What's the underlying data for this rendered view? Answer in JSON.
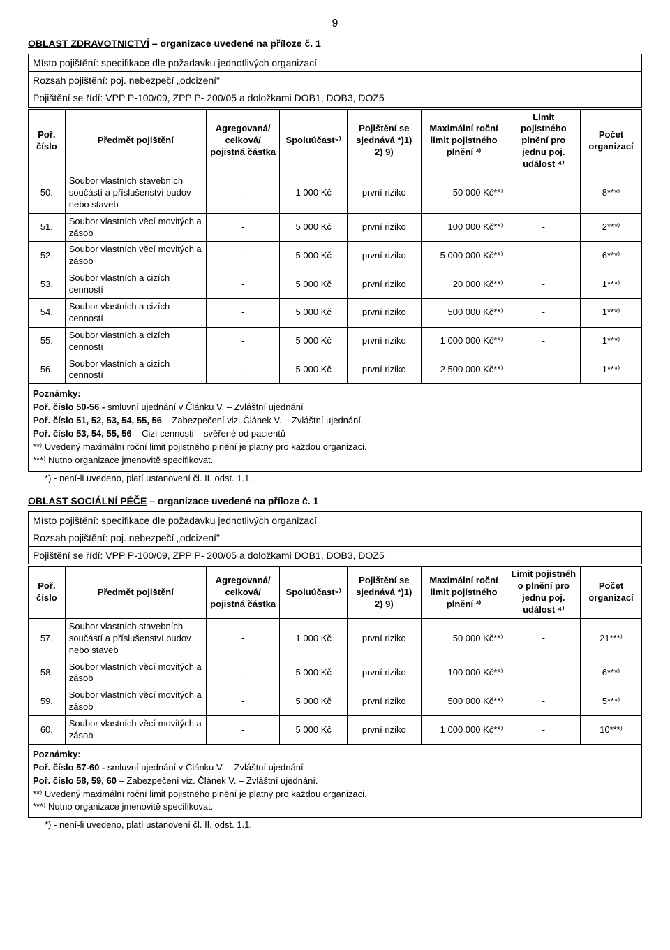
{
  "page_number": "9",
  "section1": {
    "title_pre": "OBLAST ZDRAVOTNICTVÍ",
    "title_post": " – organizace uvedené na příloze č. 1",
    "misto": "Místo pojištění: specifikace dle požadavku jednotlivých organizací",
    "rozsah": "Rozsah pojištění: poj. nebezpečí „odcizení\"",
    "ridi": "Pojištění se řídí: VPP P-100/09, ZPP P- 200/05 a doložkami DOB1, DOB3, DOZ5",
    "head": {
      "c1": "Poř. číslo",
      "c2": "Předmět pojištění",
      "c3": "Agregovaná/ celková/ pojistná částka",
      "c4": "Spoluúčast⁵⁾",
      "c5": "Pojištění se sjednává *)1) 2) 9)",
      "c6": "Maximální roční limit pojistného plnění ³⁾",
      "c7": "Limit pojistného plnění pro jednu poj. událost ⁴⁾",
      "c8": "Počet organizací"
    },
    "rows": [
      {
        "n": "50.",
        "p": "Soubor vlastních stavebních součástí a příslušenství budov nebo staveb",
        "a": "-",
        "s": "1 000 Kč",
        "f": "první riziko",
        "m": "50 000 Kč**⁾",
        "l": "-",
        "o": "8***⁾"
      },
      {
        "n": "51.",
        "p": "Soubor vlastních věcí movitých a zásob",
        "a": "-",
        "s": "5 000 Kč",
        "f": "první riziko",
        "m": "100 000 Kč**⁾",
        "l": "-",
        "o": "2***⁾"
      },
      {
        "n": "52.",
        "p": "Soubor vlastních věcí movitých a zásob",
        "a": "-",
        "s": "5 000 Kč",
        "f": "první riziko",
        "m": "5 000 000 Kč**⁾",
        "l": "-",
        "o": "6***⁾"
      },
      {
        "n": "53.",
        "p": "Soubor vlastních a cizích cenností",
        "a": "-",
        "s": "5 000 Kč",
        "f": "první riziko",
        "m": "20 000 Kč**⁾",
        "l": "-",
        "o": "1***⁾"
      },
      {
        "n": "54.",
        "p": "Soubor vlastních a cizích cenností",
        "a": "-",
        "s": "5 000 Kč",
        "f": "první riziko",
        "m": "500 000 Kč**⁾",
        "l": "-",
        "o": "1***⁾"
      },
      {
        "n": "55.",
        "p": "Soubor vlastních a cizích cenností",
        "a": "-",
        "s": "5 000 Kč",
        "f": "první riziko",
        "m": "1 000 000 Kč**⁾",
        "l": "-",
        "o": "1***⁾"
      },
      {
        "n": "56.",
        "p": "Soubor vlastních a cizích cenností",
        "a": "-",
        "s": "5 000 Kč",
        "f": "první riziko",
        "m": "2 500 000 Kč**⁾",
        "l": "-",
        "o": "1***⁾"
      }
    ],
    "notes": [
      "Poznámky:",
      "Poř. číslo 50-56 - smluvní ujednání v Článku V. – Zvláštní ujednání",
      "Poř. číslo 51, 52, 53, 54, 55, 56 – Zabezpečení viz. Článek V. – Zvláštní ujednání.",
      "Poř. číslo 53, 54, 55, 56 – Cizí cennosti – svěřené od pacientů",
      "**⁾ Uvedený maximální roční limit pojistného plnění je platný pro každou organizaci.",
      "***⁾ Nutno organizace jmenovitě specifikovat."
    ],
    "footnote": "*) - není-li uvedeno, platí ustanovení čl. II. odst. 1.1."
  },
  "section2": {
    "title_pre": "OBLAST SOCIÁLNÍ PÉČE",
    "title_post": " – organizace uvedené na příloze č. 1",
    "misto": "Místo pojištění: specifikace dle požadavku jednotlivých organizací",
    "rozsah": "Rozsah pojištění: poj. nebezpečí „odcizení\"",
    "ridi": "Pojištění se řídí: VPP P-100/09, ZPP P- 200/05 a doložkami DOB1, DOB3, DOZ5",
    "head": {
      "c1": "Poř. číslo",
      "c2": "Předmět pojištění",
      "c3": "Agregovaná/ celková/ pojistná částka",
      "c4": "Spoluúčast⁵⁾",
      "c5": "Pojištění se sjednává *)1) 2) 9)",
      "c6": "Maximální roční limit pojistného plnění ³⁾",
      "c7": "Limit pojistnéh o plnění pro jednu poj. událost ⁴⁾",
      "c8": "Počet organizací"
    },
    "rows": [
      {
        "n": "57.",
        "p": "Soubor vlastních stavebních součástí a příslušenství budov nebo staveb",
        "a": "-",
        "s": "1 000 Kč",
        "f": "první riziko",
        "m": "50 000 Kč**⁾",
        "l": "-",
        "o": "21***⁾"
      },
      {
        "n": "58.",
        "p": "Soubor vlastních věcí movitých a zásob",
        "a": "-",
        "s": "5 000 Kč",
        "f": "první riziko",
        "m": "100 000 Kč**⁾",
        "l": "-",
        "o": "6***⁾"
      },
      {
        "n": "59.",
        "p": "Soubor vlastních věcí movitých a zásob",
        "a": "-",
        "s": "5 000 Kč",
        "f": "první riziko",
        "m": "500 000 Kč**⁾",
        "l": "-",
        "o": "5***⁾"
      },
      {
        "n": "60.",
        "p": "Soubor vlastních věcí movitých a zásob",
        "a": "-",
        "s": "5 000 Kč",
        "f": "první riziko",
        "m": "1 000 000 Kč**⁾",
        "l": "-",
        "o": "10***⁾"
      }
    ],
    "notes": [
      "Poznámky:",
      "Poř. číslo 57-60 - smluvní ujednání v Článku V. – Zvláštní ujednání",
      "Poř. číslo 58, 59, 60 – Zabezpečení viz. Článek V. – Zvláštní ujednání.",
      "**⁾ Uvedený maximální roční limit pojistného plnění je platný pro každou organizaci.",
      "***⁾ Nutno organizace jmenovitě specifikovat."
    ],
    "footnote": "*) - není-li uvedeno, platí ustanovení čl. II. odst. 1.1."
  }
}
